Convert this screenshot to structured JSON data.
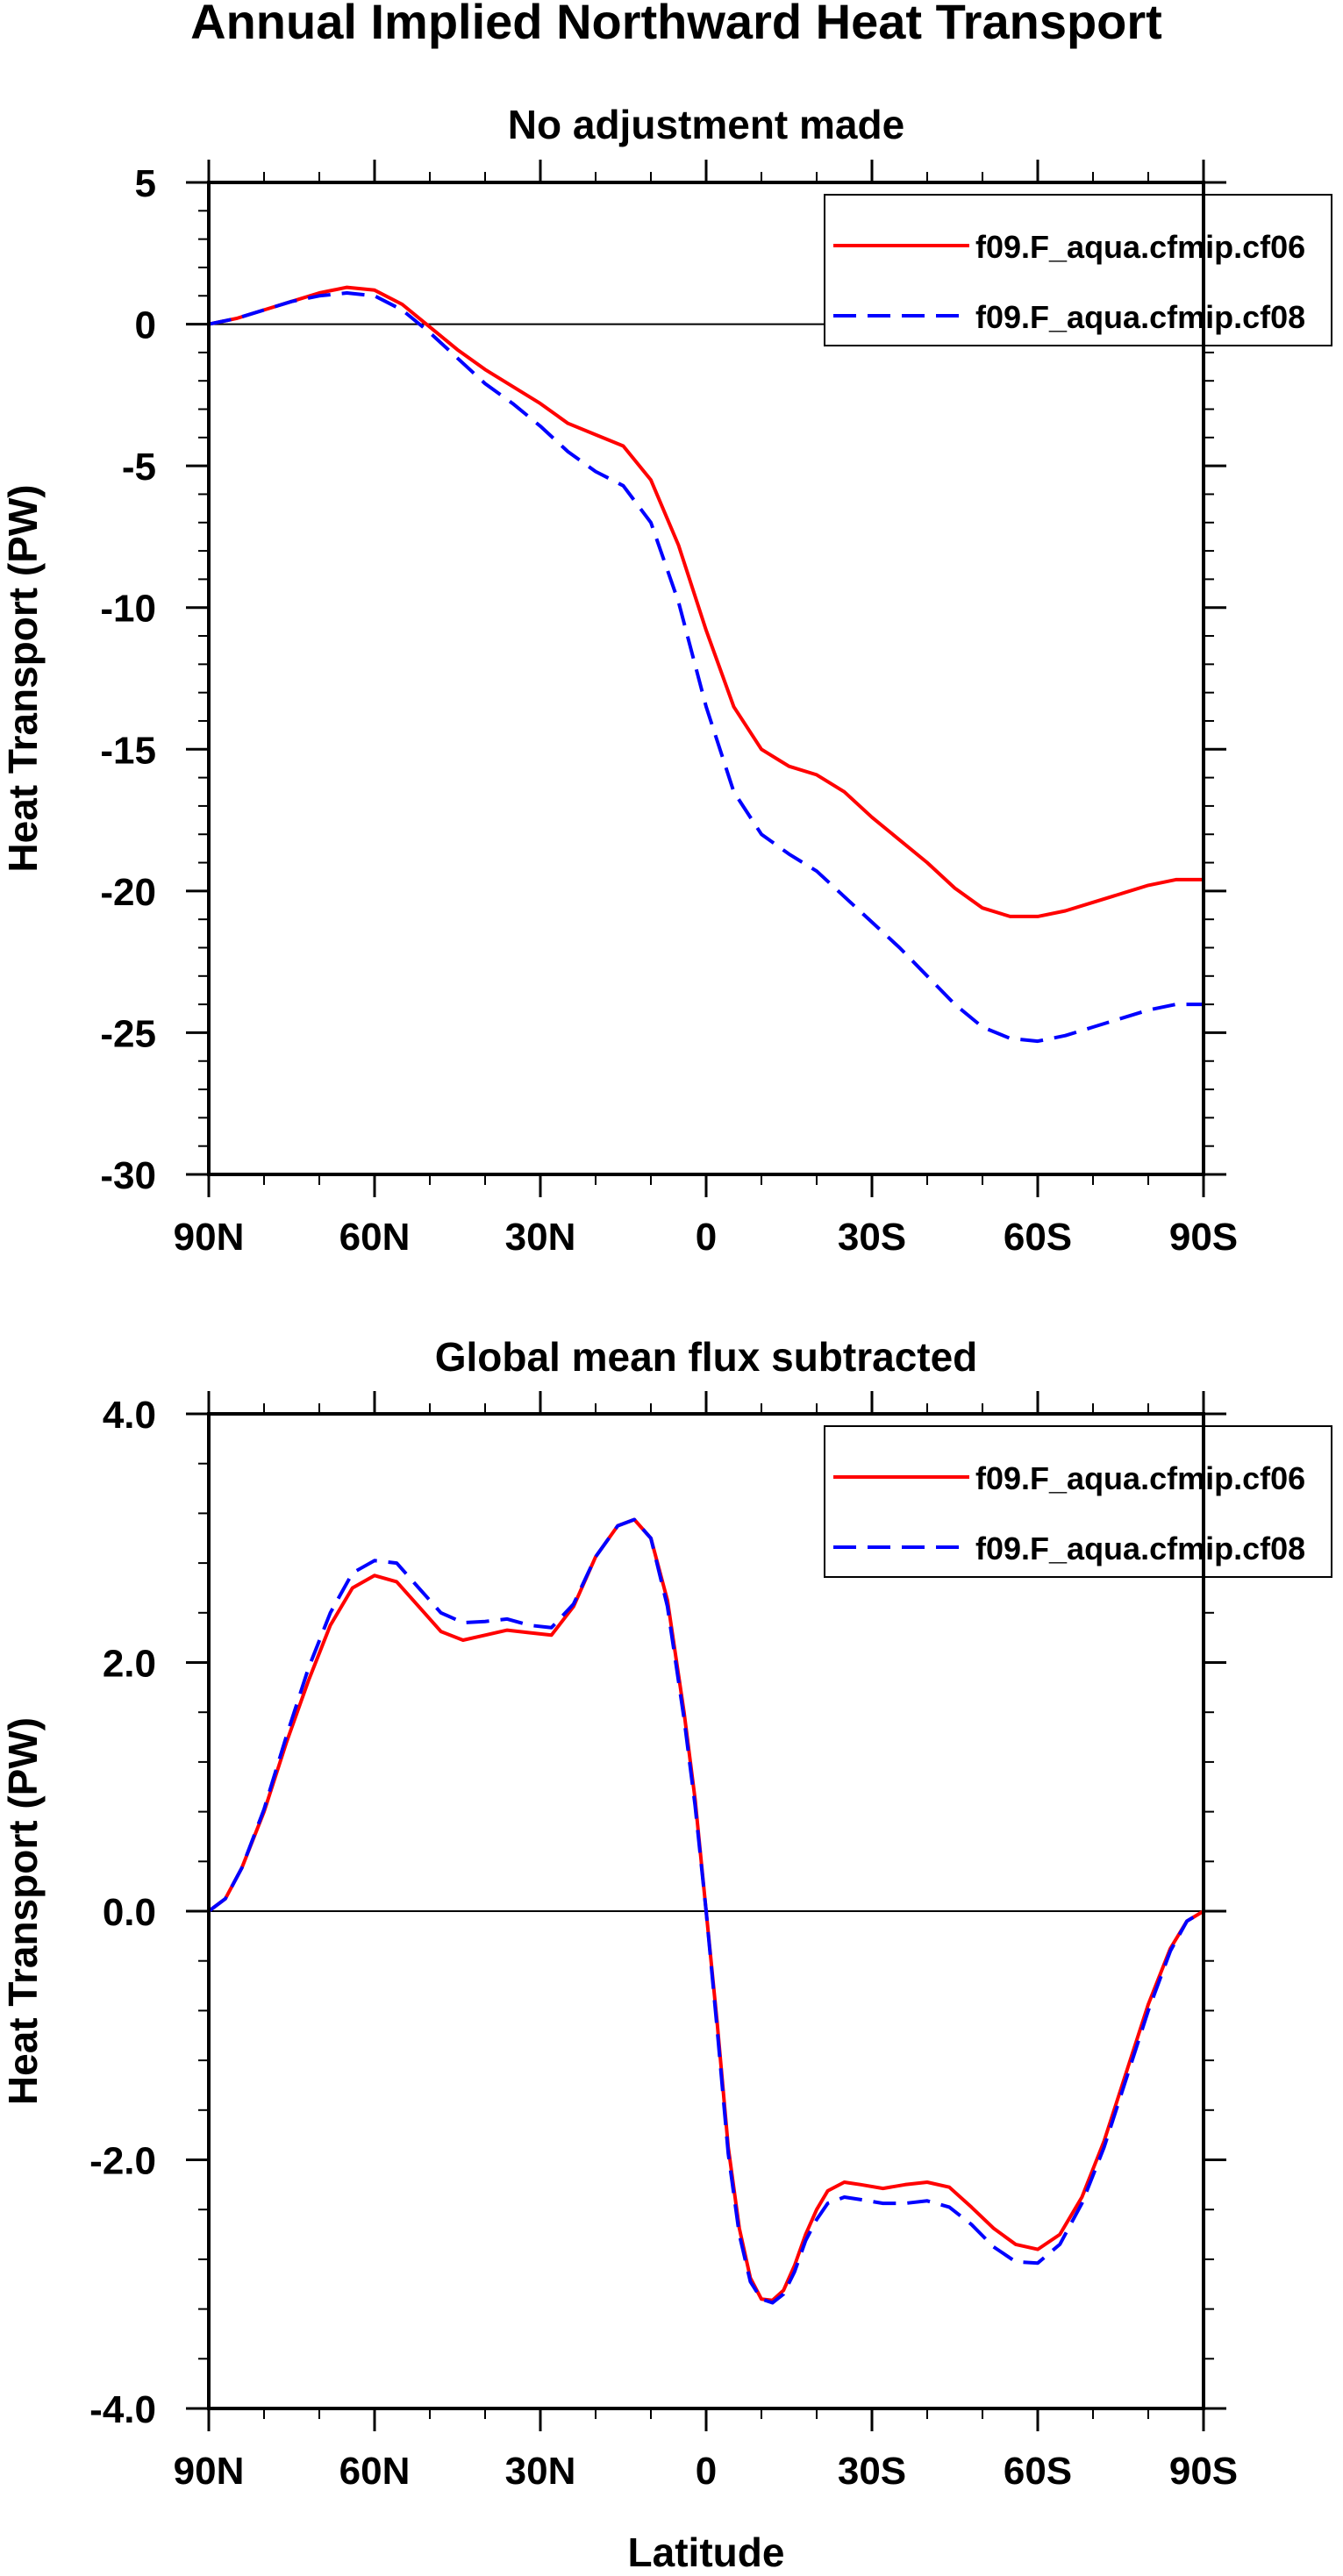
{
  "figure": {
    "title": "Annual Implied Northward Heat Transport"
  },
  "chart_data": [
    {
      "type": "line",
      "title": "No adjustment made",
      "xlabel": "",
      "ylabel": "Heat Transport (PW)",
      "xlim": [
        -90,
        90
      ],
      "ylim": [
        -30,
        5
      ],
      "xticks": [
        -90,
        -60,
        -30,
        0,
        30,
        60,
        90
      ],
      "xtick_labels": [
        "90N",
        "60N",
        "30N",
        "0",
        "30S",
        "60S",
        "90S"
      ],
      "yticks": [
        5,
        0,
        -5,
        -10,
        -15,
        -20,
        -25,
        -30
      ],
      "ytick_labels": [
        "5",
        "0",
        "-5",
        "-10",
        "-15",
        "-20",
        "-25",
        "-30"
      ],
      "y_minor_step": 1,
      "zero_line": true,
      "legend": "top-right",
      "series": [
        {
          "name": "f09.F_aqua.cfmip.cf06",
          "color": "#ff0000",
          "dash": "solid",
          "x": [
            -90,
            -85,
            -80,
            -75,
            -70,
            -65,
            -60,
            -55,
            -50,
            -45,
            -40,
            -35,
            -30,
            -25,
            -20,
            -15,
            -10,
            -5,
            0,
            5,
            10,
            15,
            20,
            25,
            30,
            35,
            40,
            45,
            50,
            55,
            60,
            65,
            70,
            75,
            80,
            85,
            90
          ],
          "y": [
            0,
            0.2,
            0.5,
            0.8,
            1.1,
            1.3,
            1.2,
            0.7,
            -0.1,
            -0.9,
            -1.6,
            -2.2,
            -2.8,
            -3.5,
            -3.9,
            -4.3,
            -5.5,
            -7.8,
            -10.8,
            -13.5,
            -15.0,
            -15.6,
            -15.9,
            -16.5,
            -17.4,
            -18.2,
            -19.0,
            -19.9,
            -20.6,
            -20.9,
            -20.9,
            -20.7,
            -20.4,
            -20.1,
            -19.8,
            -19.6,
            -19.6
          ]
        },
        {
          "name": "f09.F_aqua.cfmip.cf08",
          "color": "#0000ff",
          "dash": "dashed",
          "x": [
            -90,
            -85,
            -80,
            -75,
            -70,
            -65,
            -60,
            -55,
            -50,
            -45,
            -40,
            -35,
            -30,
            -25,
            -20,
            -15,
            -10,
            -5,
            0,
            5,
            10,
            15,
            20,
            25,
            30,
            35,
            40,
            45,
            50,
            55,
            60,
            65,
            70,
            75,
            80,
            85,
            90
          ],
          "y": [
            0,
            0.2,
            0.5,
            0.8,
            1.0,
            1.1,
            1.0,
            0.5,
            -0.3,
            -1.2,
            -2.1,
            -2.8,
            -3.6,
            -4.5,
            -5.2,
            -5.7,
            -7.0,
            -9.8,
            -13.5,
            -16.5,
            -18.0,
            -18.7,
            -19.3,
            -20.2,
            -21.1,
            -22.0,
            -23.0,
            -24.0,
            -24.8,
            -25.2,
            -25.3,
            -25.1,
            -24.8,
            -24.5,
            -24.2,
            -24.0,
            -24.0
          ]
        }
      ]
    },
    {
      "type": "line",
      "title": "Global mean flux subtracted",
      "xlabel": "Latitude",
      "ylabel": "Heat Transport (PW)",
      "xlim": [
        -90,
        90
      ],
      "ylim": [
        -4,
        4
      ],
      "xticks": [
        -90,
        -60,
        -30,
        0,
        30,
        60,
        90
      ],
      "xtick_labels": [
        "90N",
        "60N",
        "30N",
        "0",
        "30S",
        "60S",
        "90S"
      ],
      "yticks": [
        4,
        2,
        0,
        -2,
        -4
      ],
      "ytick_labels": [
        "4.0",
        "2.0",
        "0.0",
        "-2.0",
        "-4.0"
      ],
      "y_minor_step": 0.4,
      "zero_line": true,
      "legend": "top-right",
      "series": [
        {
          "name": "f09.F_aqua.cfmip.cf06",
          "color": "#ff0000",
          "dash": "solid",
          "x": [
            -90,
            -87,
            -84,
            -80,
            -76,
            -72,
            -68,
            -64,
            -60,
            -56,
            -52,
            -48,
            -44,
            -40,
            -36,
            -32,
            -28,
            -24,
            -20,
            -16,
            -13,
            -10,
            -7,
            -4,
            -2,
            0,
            2,
            4,
            6,
            8,
            10,
            12,
            14,
            16,
            18,
            20,
            22,
            25,
            28,
            32,
            36,
            40,
            44,
            48,
            52,
            56,
            60,
            64,
            68,
            72,
            76,
            80,
            84,
            87,
            90
          ],
          "y": [
            0,
            0.1,
            0.35,
            0.8,
            1.35,
            1.85,
            2.3,
            2.6,
            2.7,
            2.65,
            2.45,
            2.25,
            2.18,
            2.22,
            2.26,
            2.24,
            2.22,
            2.45,
            2.85,
            3.1,
            3.15,
            3.0,
            2.5,
            1.6,
            0.9,
            0.0,
            -0.9,
            -1.9,
            -2.55,
            -2.95,
            -3.12,
            -3.13,
            -3.05,
            -2.85,
            -2.6,
            -2.4,
            -2.25,
            -2.18,
            -2.2,
            -2.23,
            -2.2,
            -2.18,
            -2.22,
            -2.38,
            -2.55,
            -2.68,
            -2.72,
            -2.6,
            -2.3,
            -1.85,
            -1.3,
            -0.75,
            -0.3,
            -0.08,
            0
          ]
        },
        {
          "name": "f09.F_aqua.cfmip.cf08",
          "color": "#0000ff",
          "dash": "dashed",
          "x": [
            -90,
            -87,
            -84,
            -80,
            -76,
            -72,
            -68,
            -64,
            -60,
            -56,
            -52,
            -48,
            -44,
            -40,
            -36,
            -32,
            -28,
            -24,
            -20,
            -16,
            -13,
            -10,
            -7,
            -4,
            -2,
            0,
            2,
            4,
            6,
            8,
            10,
            12,
            14,
            16,
            18,
            20,
            22,
            25,
            28,
            32,
            36,
            40,
            44,
            48,
            52,
            56,
            60,
            64,
            68,
            72,
            76,
            80,
            84,
            87,
            90
          ],
          "y": [
            0,
            0.1,
            0.35,
            0.82,
            1.4,
            1.95,
            2.4,
            2.72,
            2.82,
            2.8,
            2.6,
            2.4,
            2.32,
            2.33,
            2.35,
            2.3,
            2.28,
            2.47,
            2.85,
            3.1,
            3.15,
            3.0,
            2.45,
            1.55,
            0.85,
            0.0,
            -0.95,
            -1.95,
            -2.6,
            -2.98,
            -3.12,
            -3.15,
            -3.08,
            -2.9,
            -2.65,
            -2.48,
            -2.35,
            -2.3,
            -2.32,
            -2.35,
            -2.35,
            -2.33,
            -2.38,
            -2.52,
            -2.7,
            -2.82,
            -2.83,
            -2.68,
            -2.35,
            -1.9,
            -1.35,
            -0.8,
            -0.32,
            -0.08,
            0
          ]
        }
      ]
    }
  ]
}
